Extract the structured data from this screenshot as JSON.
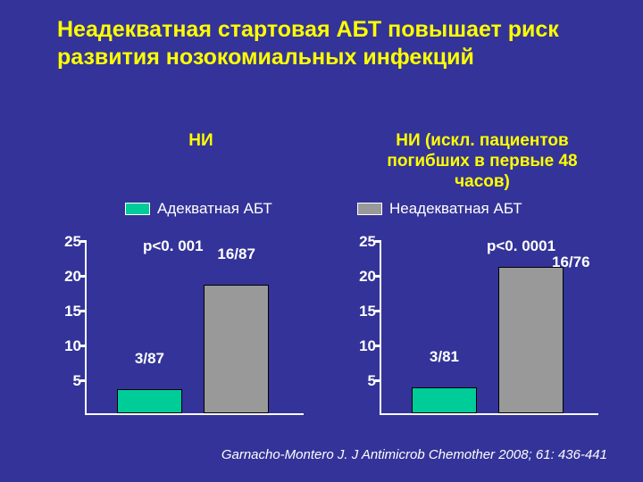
{
  "title": "Неадекватная  стартовая АБТ повышает  риск  развития нозокомиальных инфекций",
  "title_fontsize": 25,
  "background_color": "#333399",
  "title_color": "#ffff00",
  "text_color": "#ffffff",
  "subtitle_left": "НИ",
  "subtitle_right": "НИ (искл. пациентов погибших в первые 48 часов)",
  "subtitle_fontsize": 19,
  "legend": {
    "adequate": {
      "label": "Адекватная АБТ",
      "color": "#00cc99"
    },
    "inadequate": {
      "label": "Неадекватная  АБТ",
      "color": "#999999"
    },
    "fontsize": 17
  },
  "chart_left": {
    "type": "bar",
    "ylim": [
      0,
      25
    ],
    "ytick_step": 5,
    "ytick_labels": [
      "5",
      "10",
      "15",
      "20",
      "25"
    ],
    "tick_fontsize": 17,
    "pvalue": "p<0. 001",
    "pvalue_fontsize": 17,
    "bars": [
      {
        "label": "3/87",
        "value": 3.5,
        "color": "#00cc99",
        "left_pct": 14,
        "width_pct": 30
      },
      {
        "label": "16/87",
        "value": 18.4,
        "color": "#999999",
        "left_pct": 54,
        "width_pct": 30
      }
    ]
  },
  "chart_right": {
    "type": "bar",
    "ylim": [
      0,
      25
    ],
    "ytick_step": 5,
    "ytick_labels": [
      "5",
      "10",
      "15",
      "20",
      "25"
    ],
    "tick_fontsize": 17,
    "pvalue": "p<0. 0001",
    "pvalue_fontsize": 17,
    "extra_label": "16/76",
    "bars": [
      {
        "label": "3/81",
        "value": 3.7,
        "color": "#00cc99",
        "left_pct": 14,
        "width_pct": 30
      },
      {
        "label": "",
        "value": 21.0,
        "color": "#999999",
        "left_pct": 54,
        "width_pct": 30
      }
    ]
  },
  "citation": "Garnacho-Montero J. J Antimicrob Chemother 2008; 61: 436-441",
  "citation_fontsize": 15
}
